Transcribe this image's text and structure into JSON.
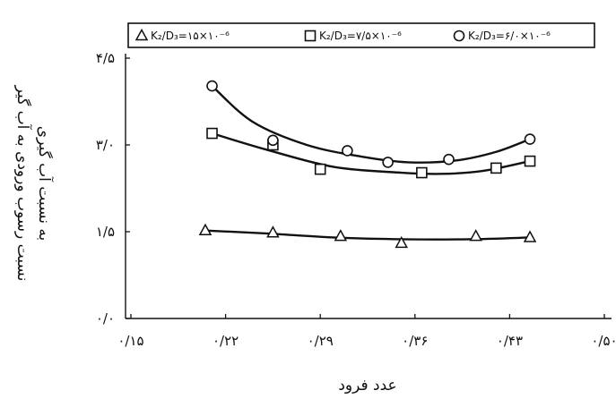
{
  "chart_data": {
    "type": "scatter",
    "xlabel": "عدد فرود",
    "ylabel_lines": [
      "نسبت رسوب ورودی به آب گیر",
      "به نسبت آب گیری"
    ],
    "xlim": [
      0.15,
      0.5
    ],
    "ylim": [
      0.0,
      4.5
    ],
    "x_ticks": [
      0.15,
      0.22,
      0.29,
      0.36,
      0.43,
      0.5
    ],
    "x_tick_labels": [
      "۰/۱۵",
      "۰/۲۲",
      "۰/۲۹",
      "۰/۳۶",
      "۰/۴۳",
      "۰/۵۰"
    ],
    "y_ticks": [
      0.0,
      1.5,
      3.0,
      4.5
    ],
    "y_tick_labels": [
      "۰/۰",
      "۱/۵",
      "۳/۰",
      "۴/۵"
    ],
    "legend_position": "top",
    "legend": [
      {
        "marker": "triangle",
        "text": "K₂/D₃=۱۵×۱۰⁻⁶"
      },
      {
        "marker": "square",
        "text": "K₂/D₃=۷/۵×۱۰⁻⁶"
      },
      {
        "marker": "circle",
        "text": "K₂/D₃=۶/۰×۱۰⁻⁶"
      }
    ],
    "series": [
      {
        "marker": "triangle",
        "x": [
          0.205,
          0.255,
          0.305,
          0.35,
          0.405,
          0.445
        ],
        "y": [
          1.52,
          1.48,
          1.42,
          1.3,
          1.42,
          1.4
        ],
        "fit_x": [
          0.205,
          0.25,
          0.3,
          0.35,
          0.4,
          0.445
        ],
        "fit_y": [
          1.52,
          1.47,
          1.4,
          1.37,
          1.37,
          1.4
        ]
      },
      {
        "marker": "square",
        "x": [
          0.21,
          0.255,
          0.29,
          0.365,
          0.42,
          0.445
        ],
        "y": [
          3.2,
          3.0,
          2.58,
          2.52,
          2.6,
          2.72
        ],
        "fit_x": [
          0.21,
          0.25,
          0.3,
          0.35,
          0.38,
          0.41,
          0.445
        ],
        "fit_y": [
          3.2,
          2.92,
          2.62,
          2.52,
          2.5,
          2.55,
          2.72
        ]
      },
      {
        "marker": "circle",
        "x": [
          0.21,
          0.255,
          0.31,
          0.34,
          0.385,
          0.445
        ],
        "y": [
          4.02,
          3.08,
          2.9,
          2.7,
          2.75,
          3.1
        ],
        "fit_x": [
          0.21,
          0.24,
          0.28,
          0.32,
          0.355,
          0.39,
          0.42,
          0.445
        ],
        "fit_y": [
          4.02,
          3.4,
          3.0,
          2.8,
          2.7,
          2.73,
          2.88,
          3.1
        ]
      }
    ]
  }
}
